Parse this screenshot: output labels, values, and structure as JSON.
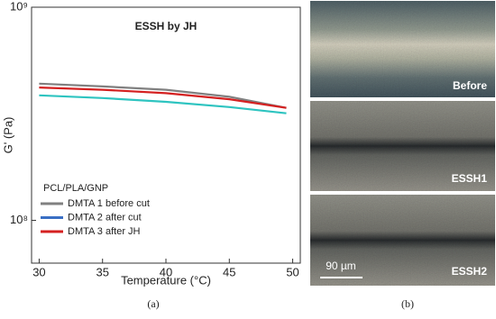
{
  "chart_data": {
    "type": "line",
    "title": "ESSH by JH",
    "x_label": "Temperature (°C)",
    "y_label": "G' (Pa)",
    "yscale": "log",
    "x": [
      30,
      35,
      40,
      45,
      49.5
    ],
    "series": [
      {
        "name": "DMTA 1 before cut",
        "color": "#808080",
        "values": [
          438000000,
          425000000,
          410000000,
          380000000,
          337000000
        ]
      },
      {
        "name": "DMTA 2 after cut",
        "color": "#2ec4c0",
        "legend_color": "#3a6fc4",
        "values": [
          386000000,
          375000000,
          360000000,
          340000000,
          318000000
        ]
      },
      {
        "name": "DMTA 3 after JH",
        "color": "#d42020",
        "values": [
          420000000,
          410000000,
          395000000,
          370000000,
          337000000
        ]
      }
    ],
    "legend_title": "PCL/PLA/GNP",
    "xlim": [
      29.4,
      50.6
    ],
    "xticks": [
      30,
      35,
      40,
      45,
      50
    ],
    "ylim": [
      63000000,
      1000000000
    ],
    "yticks": [
      {
        "value": 100000000,
        "label": "10⁸"
      },
      {
        "value": 1000000000,
        "label": "10⁹"
      }
    ]
  },
  "figure": {
    "panel_labels": [
      "(a)",
      "(b)"
    ],
    "image_labels": [
      "Before",
      "ESSH1",
      "ESSH2"
    ],
    "scale_bar": "90 µm"
  }
}
